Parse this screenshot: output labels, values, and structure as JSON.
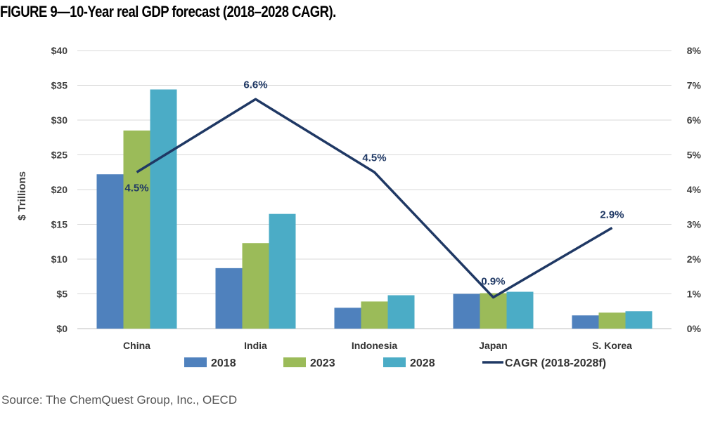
{
  "title": "FIGURE 9—10-Year real GDP forecast (2018–2028 CAGR).",
  "source": "Source: The ChemQuest Group, Inc., OECD",
  "chart_data": {
    "type": "bar",
    "categories": [
      "China",
      "India",
      "Indonesia",
      "Japan",
      "S. Korea"
    ],
    "ylabel": "$ Trillions",
    "ylim": [
      0,
      40
    ],
    "y_ticks": [
      "$0",
      "$5",
      "$10",
      "$15",
      "$20",
      "$25",
      "$30",
      "$35",
      "$40"
    ],
    "y2lim": [
      0,
      8
    ],
    "y2_ticks": [
      "0%",
      "1%",
      "2%",
      "3%",
      "4%",
      "5%",
      "6%",
      "7%",
      "8%"
    ],
    "grid": "horizontal",
    "legend": "bottom",
    "series": [
      {
        "name": "2018",
        "type": "bar",
        "axis": "left",
        "color": "#4F81BD",
        "values": [
          22.2,
          8.7,
          3.0,
          5.0,
          1.9
        ]
      },
      {
        "name": "2023",
        "type": "bar",
        "axis": "left",
        "color": "#9BBB59",
        "values": [
          28.5,
          12.3,
          3.9,
          5.1,
          2.3
        ]
      },
      {
        "name": "2028",
        "type": "bar",
        "axis": "left",
        "color": "#4BACC6",
        "values": [
          34.4,
          16.5,
          4.8,
          5.3,
          2.5
        ]
      },
      {
        "name": "CAGR (2018-2028f)",
        "type": "line",
        "axis": "right",
        "color": "#1F3864",
        "values": [
          4.5,
          6.6,
          4.5,
          0.9,
          2.9
        ],
        "labels": [
          "4.5%",
          "6.6%",
          "4.5%",
          "0.9%",
          "2.9%"
        ]
      }
    ]
  }
}
